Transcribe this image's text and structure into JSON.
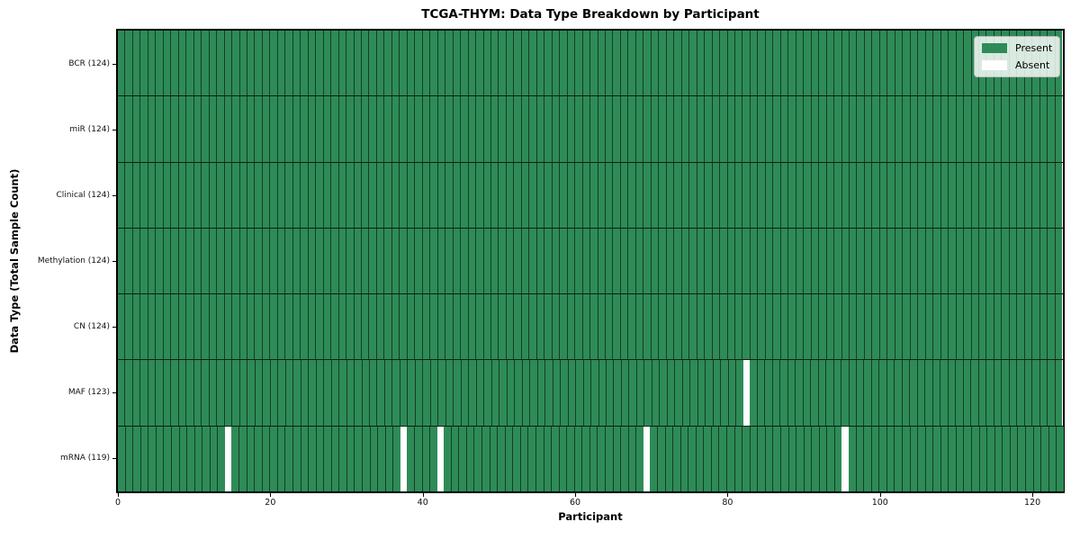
{
  "figure": {
    "title": "TCGA-THYM: Data Type Breakdown by Participant",
    "xlabel": "Participant",
    "ylabel": "Data Type (Total Sample Count)"
  },
  "colors": {
    "present": "#2e8b57",
    "absent": "#ffffff"
  },
  "chart_data": {
    "type": "heatmap",
    "title": "TCGA-THYM: Data Type Breakdown by Participant",
    "xlabel": "Participant",
    "ylabel": "Data Type (Total Sample Count)",
    "n_participants": 124,
    "x_ticks": [
      0,
      20,
      40,
      60,
      80,
      100,
      120
    ],
    "grid": false,
    "legend_position": "upper right",
    "rows": [
      {
        "label": "BCR (124)",
        "data_type": "BCR",
        "count": 124,
        "absent_participants": []
      },
      {
        "label": "miR (124)",
        "data_type": "miR",
        "count": 124,
        "absent_participants": []
      },
      {
        "label": "Clinical (124)",
        "data_type": "Clinical",
        "count": 124,
        "absent_participants": []
      },
      {
        "label": "Methylation (124)",
        "data_type": "Methylation",
        "count": 124,
        "absent_participants": []
      },
      {
        "label": "CN (124)",
        "data_type": "CN",
        "count": 124,
        "absent_participants": []
      },
      {
        "label": "MAF (123)",
        "data_type": "MAF",
        "count": 123,
        "absent_participants": [
          82
        ]
      },
      {
        "label": "mRNA (119)",
        "data_type": "mRNA",
        "count": 119,
        "absent_participants": [
          14,
          37,
          42,
          69,
          95
        ]
      }
    ],
    "legend": [
      {
        "label": "Present",
        "color": "#2e8b57"
      },
      {
        "label": "Absent",
        "color": "#ffffff"
      }
    ]
  }
}
